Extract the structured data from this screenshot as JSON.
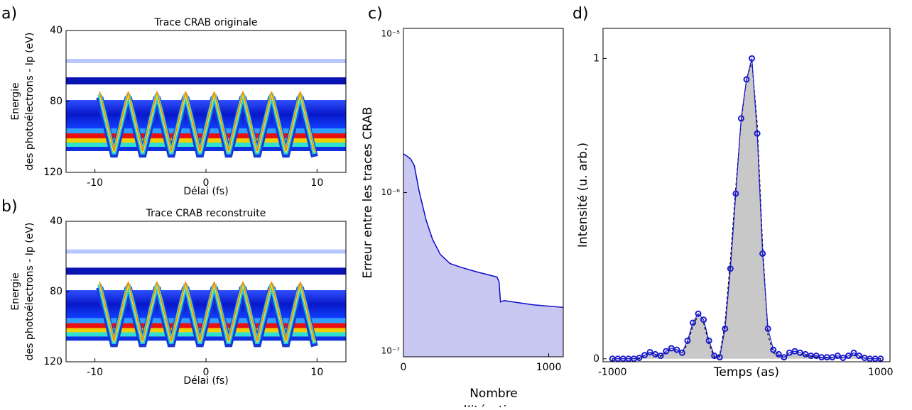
{
  "chart_data": [
    {
      "type": "heatmap",
      "panel": "a)",
      "title": "Trace CRAB originale",
      "xlabel": "Délai (fs)",
      "ylabel": [
        "Energie",
        "des photoélectrons - Ip (eV)"
      ],
      "xlim": [
        -12.6,
        12.6
      ],
      "xticks": [
        -10,
        0,
        10
      ],
      "ylim": [
        120,
        40
      ],
      "yticks": [
        40,
        80,
        120
      ]
    },
    {
      "type": "heatmap",
      "panel": "b)",
      "title": "Trace CRAB reconstruite",
      "xlabel": "Délai (fs)",
      "ylabel": [
        "Energie",
        "des photoélectrons - Ip (eV)"
      ],
      "xlim": [
        -12.6,
        12.6
      ],
      "xticks": [
        -10,
        0,
        10
      ],
      "ylim": [
        120,
        40
      ],
      "yticks": [
        40,
        80,
        120
      ]
    },
    {
      "type": "area",
      "panel": "c)",
      "xlabel": [
        "Nombre",
        "d’itérations"
      ],
      "ylabel": "Erreur entre les traces CRAB",
      "log_y": true,
      "color": "#0a0ac8",
      "fill": "#c8c8f2",
      "xlim": [
        0,
        1100
      ],
      "xticks": [
        0,
        1000
      ],
      "ylim": [
        1e-07,
        1e-05
      ],
      "yticks": [
        {
          "value": 1e-07,
          "label": "10⁻⁷"
        },
        {
          "value": 1e-06,
          "label": "10⁻⁶"
        },
        {
          "value": 1e-05,
          "label": "10⁻⁵"
        }
      ],
      "x": [
        0,
        20,
        50,
        75,
        107,
        156,
        200,
        254,
        320,
        400,
        500,
        644,
        658,
        668,
        693,
        800,
        900,
        1100
      ],
      "values": [
        1.72e-06,
        1.68e-06,
        1.6e-06,
        1.46e-06,
        1.03e-06,
        6.8e-07,
        5.2e-07,
        4.2e-07,
        3.7e-07,
        3.5e-07,
        3.3e-07,
        3.06e-07,
        2.86e-07,
        2.16e-07,
        2.2e-07,
        2.13e-07,
        2.07e-07,
        2e-07
      ]
    },
    {
      "type": "line",
      "panel": "d)",
      "xlabel": "Temps (as)",
      "ylabel": "Intensité (u. arb.)",
      "xlim": [
        -1070,
        1070
      ],
      "xticks": [
        -1000,
        1000
      ],
      "ylim": [
        -0.01,
        1.1
      ],
      "yticks": [
        0,
        1
      ],
      "x": [
        -1000,
        -960,
        -920,
        -880,
        -840,
        -800,
        -760,
        -720,
        -680,
        -640,
        -600,
        -560,
        -520,
        -480,
        -440,
        -400,
        -360,
        -320,
        -280,
        -240,
        -200,
        -160,
        -120,
        -80,
        -40,
        0,
        40,
        80,
        120,
        160,
        200,
        240,
        280,
        320,
        360,
        400,
        440,
        480,
        520,
        560,
        600,
        640,
        680,
        720,
        760,
        800,
        840,
        880,
        920,
        960,
        1000
      ],
      "series": [
        {
          "color": "#c8c8c8",
          "style": "filled-dashed",
          "values": [
            0,
            0,
            0,
            0,
            0,
            0,
            0.01,
            0.02,
            0.012,
            0.008,
            0.02,
            0.03,
            0.028,
            0.02,
            0.05,
            0.11,
            0.145,
            0.12,
            0.05,
            0.005,
            0.01,
            0.12,
            0.33,
            0.57,
            0.79,
            0.93,
            0.99,
            0.78,
            0.38,
            0.08,
            0.02,
            0.01,
            0.005,
            0.015,
            0.02,
            0.015,
            0.012,
            0.008,
            0.006,
            0.004,
            0.003,
            0.004,
            0.006,
            0.004,
            0.006,
            0.012,
            0.006,
            0.002,
            0,
            0,
            0
          ]
        },
        {
          "color": "#1a1ad0",
          "style": "circles",
          "values": [
            0,
            0,
            0,
            0,
            0,
            0.003,
            0.012,
            0.022,
            0.015,
            0.01,
            0.025,
            0.035,
            0.03,
            0.02,
            0.06,
            0.12,
            0.15,
            0.13,
            0.06,
            0.01,
            0.005,
            0.1,
            0.3,
            0.55,
            0.8,
            0.93,
            1.0,
            0.75,
            0.35,
            0.1,
            0.03,
            0.015,
            0.005,
            0.02,
            0.025,
            0.02,
            0.015,
            0.01,
            0.01,
            0.005,
            0.005,
            0.005,
            0.01,
            0.003,
            0.01,
            0.02,
            0.01,
            0.003,
            0,
            0,
            0
          ]
        }
      ]
    }
  ]
}
